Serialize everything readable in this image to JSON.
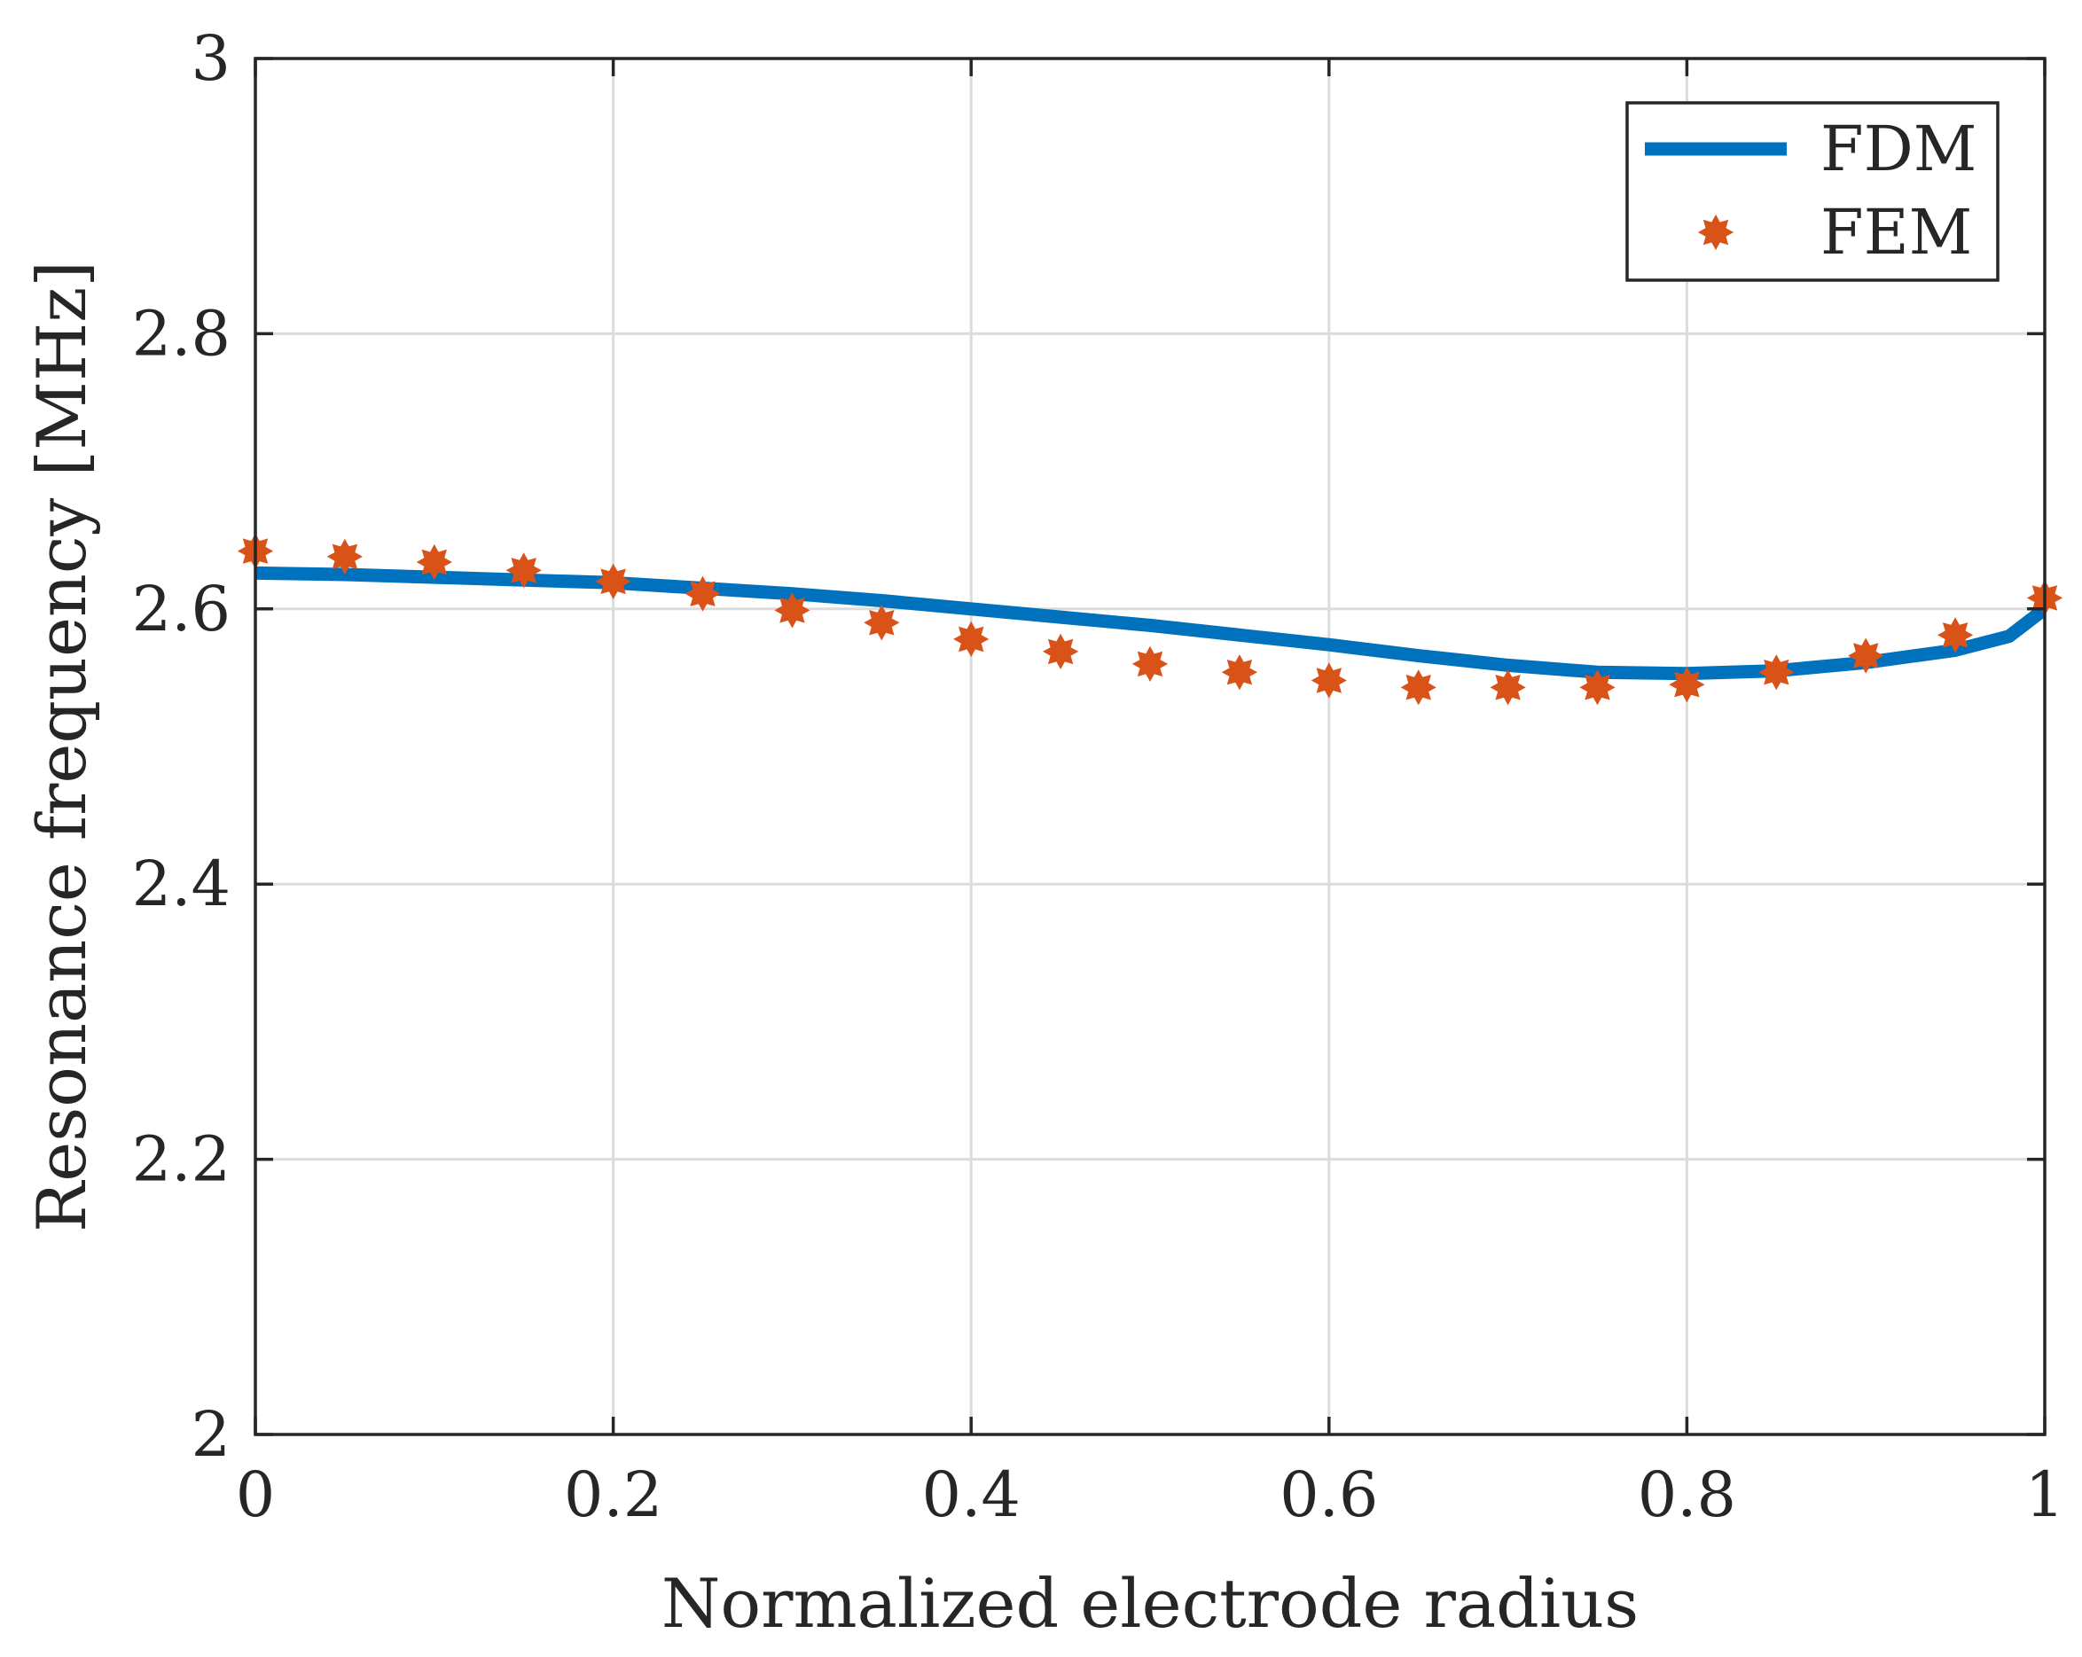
{
  "chart_data": {
    "type": "line",
    "title": "",
    "xlabel": "Normalized electrode radius",
    "ylabel": "Resonance frequency [MHz]",
    "xlim": [
      0,
      1
    ],
    "ylim": [
      2,
      3
    ],
    "grid": true,
    "legend_position": "top-right",
    "x_ticks": [
      0,
      0.2,
      0.4,
      0.6,
      0.8,
      1
    ],
    "x_tick_labels": [
      "0",
      "0.2",
      "0.4",
      "0.6",
      "0.8",
      "1"
    ],
    "y_ticks": [
      2,
      2.2,
      2.4,
      2.6,
      2.8,
      3
    ],
    "y_tick_labels": [
      "2",
      "2.2",
      "2.4",
      "2.6",
      "2.8",
      "3"
    ],
    "series": [
      {
        "name": "FDM",
        "style": "line",
        "color": "#0072BD",
        "x": [
          0,
          0.05,
          0.1,
          0.15,
          0.2,
          0.25,
          0.3,
          0.35,
          0.4,
          0.45,
          0.5,
          0.55,
          0.6,
          0.65,
          0.7,
          0.75,
          0.8,
          0.85,
          0.9,
          0.95,
          0.98,
          1.0
        ],
        "y": [
          2.626,
          2.625,
          2.623,
          2.621,
          2.619,
          2.615,
          2.611,
          2.606,
          2.6,
          2.594,
          2.588,
          2.581,
          2.574,
          2.566,
          2.559,
          2.554,
          2.553,
          2.555,
          2.561,
          2.57,
          2.58,
          2.6
        ]
      },
      {
        "name": "FEM",
        "style": "markers",
        "color": "#D95319",
        "x": [
          0,
          0.05,
          0.1,
          0.15,
          0.2,
          0.25,
          0.3,
          0.35,
          0.4,
          0.45,
          0.5,
          0.55,
          0.6,
          0.65,
          0.7,
          0.75,
          0.8,
          0.85,
          0.9,
          0.95,
          1.0
        ],
        "y": [
          2.642,
          2.638,
          2.634,
          2.628,
          2.62,
          2.611,
          2.599,
          2.59,
          2.578,
          2.569,
          2.56,
          2.554,
          2.548,
          2.543,
          2.543,
          2.543,
          2.545,
          2.554,
          2.566,
          2.581,
          2.608
        ]
      }
    ]
  }
}
